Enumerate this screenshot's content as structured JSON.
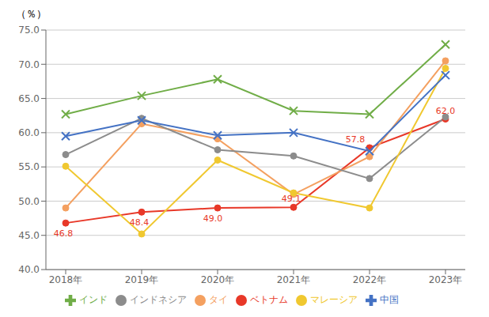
{
  "chart_data": {
    "type": "line",
    "ylabel": "（％）",
    "categories": [
      "2018年",
      "2019年",
      "2020年",
      "2021年",
      "2022年",
      "2023年"
    ],
    "series": [
      {
        "name": "ベトナム",
        "color": "#e83828",
        "marker": "circle",
        "values": [
          46.8,
          48.4,
          49.0,
          49.1,
          57.8,
          62.0
        ],
        "data_labels": true,
        "value_labels": [
          "46.8",
          "48.4",
          "49.0",
          "49.1",
          "57.8",
          "62.0"
        ]
      },
      {
        "name": "タイ",
        "color": "#f4a060",
        "marker": "circle",
        "values": [
          49.0,
          61.3,
          59.1,
          51.0,
          56.5,
          70.5
        ]
      },
      {
        "name": "インドネシア",
        "color": "#8c8c8c",
        "marker": "circle",
        "values": [
          56.8,
          62.1,
          57.5,
          56.6,
          53.3,
          62.3
        ]
      },
      {
        "name": "マレーシア",
        "color": "#f0c830",
        "marker": "circle",
        "values": [
          55.1,
          45.2,
          56.0,
          51.2,
          49.0,
          69.4
        ]
      },
      {
        "name": "中国",
        "color": "#4472c4",
        "marker": "x",
        "values": [
          59.5,
          61.8,
          59.6,
          60.0,
          57.3,
          68.4
        ]
      },
      {
        "name": "インド",
        "color": "#70ad47",
        "marker": "x",
        "values": [
          62.7,
          65.4,
          67.8,
          63.2,
          62.7,
          72.9
        ]
      }
    ],
    "ylim": [
      40.0,
      75.0
    ],
    "yticks": [
      {
        "value": 40,
        "label": "40.0"
      },
      {
        "value": 45,
        "label": "45.0"
      },
      {
        "value": 50,
        "label": "50.0"
      },
      {
        "value": 55,
        "label": "55.0"
      },
      {
        "value": 60,
        "label": "60.0"
      },
      {
        "value": 65,
        "label": "65.0"
      },
      {
        "value": 70,
        "label": "70.0"
      },
      {
        "value": 75,
        "label": "75.0"
      }
    ],
    "grid": true,
    "legend": "bottom"
  }
}
